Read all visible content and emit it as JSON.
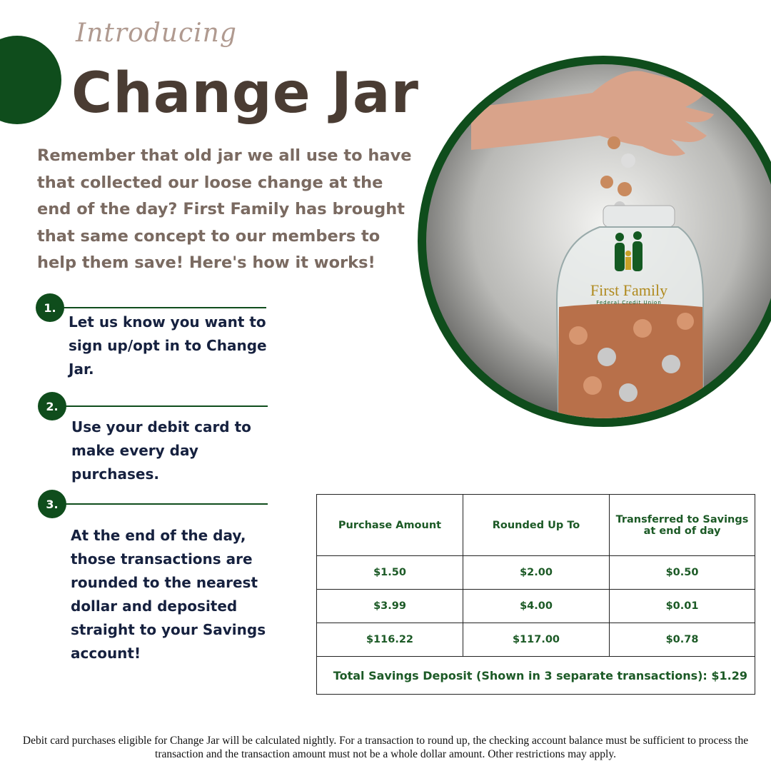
{
  "header": {
    "kicker": "Introducing",
    "title": "Change Jar"
  },
  "intro": "Remember that old jar we all use to have that collected our loose change at the end of the day? First Family has brought that same concept to our members to help them save! Here's how it works!",
  "steps": [
    {
      "number": "1.",
      "text": "Let us know you want to sign up/opt in to Change Jar."
    },
    {
      "number": "2.",
      "text": "Use your debit card to make every day purchases."
    },
    {
      "number": "3.",
      "text": "At the end of the day, those transactions are rounded to the nearest dollar and deposited straight to your Savings account!"
    }
  ],
  "image": {
    "logo": "First Family",
    "logo_sub": "Federal Credit Union"
  },
  "table": {
    "header": [
      "Purchase Amount",
      "Rounded Up To",
      "Transferred to Savings at end of day"
    ],
    "rows": [
      [
        "$1.50",
        "$2.00",
        "$0.50"
      ],
      [
        "$3.99",
        "$4.00",
        "$0.01"
      ],
      [
        "$116.22",
        "$117.00",
        "$0.78"
      ]
    ],
    "total": "Total Savings Deposit (Shown in 3 separate transactions): $1.29"
  },
  "footnote": "Debit card purchases eligible for Change Jar will be calculated nightly. For a transaction to round up, the checking account balance must be sufficient to process the transaction and the transaction amount must not be a whole dollar amount. Other restrictions may apply."
}
